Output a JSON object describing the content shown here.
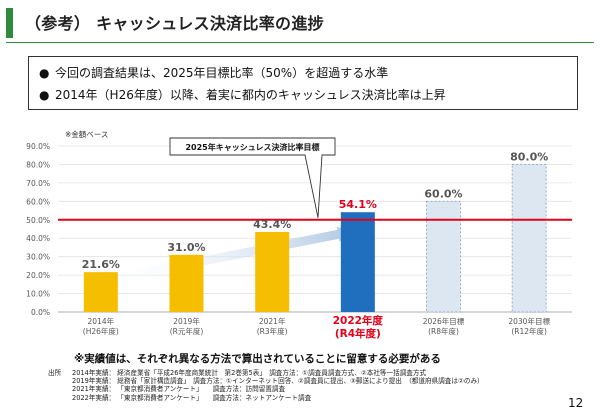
{
  "title": "（参考） キャッシュレス決済比率の進捗",
  "summary": {
    "bullets": [
      "今回の調査結果は、2025年目標比率（50%）を超過する水準",
      "2014年（H26年度）以降、着実に都内のキャッシュレス決済比率は上昇"
    ]
  },
  "colors": {
    "accent_green": "#2e8b3c",
    "bar_actual": "#f5bf00",
    "bar_current": "#1f6fbe",
    "bar_target_fill": "#dde7f1",
    "bar_target_border": "#8aa6c6",
    "target_line": "#e3001b",
    "current_label": "#e3001b"
  },
  "chart_data": {
    "type": "bar",
    "basis_note": "※金額ベース",
    "ylim": [
      0,
      90
    ],
    "yticks": [
      "0.0%",
      "10.0%",
      "20.0%",
      "30.0%",
      "40.0%",
      "50.0%",
      "60.0%",
      "70.0%",
      "80.0%",
      "90.0%"
    ],
    "categories": [
      {
        "year": "2014年",
        "era": "(H26年度)",
        "value": 21.6,
        "label": "21.6%",
        "kind": "actual"
      },
      {
        "year": "2019年",
        "era": "(R元年度)",
        "value": 31.0,
        "label": "31.0%",
        "kind": "actual"
      },
      {
        "year": "2021年",
        "era": "(R3年度)",
        "value": 43.4,
        "label": "43.4%",
        "kind": "actual"
      },
      {
        "year": "2022年度",
        "era": "(R4年度)",
        "value": 54.1,
        "label": "54.1%",
        "kind": "current"
      },
      {
        "year": "2026年目標",
        "era": "(R8年度)",
        "value": 60.0,
        "label": "60.0%",
        "kind": "target"
      },
      {
        "year": "2030年目標",
        "era": "(R12年度)",
        "value": 80.0,
        "label": "80.0%",
        "kind": "target"
      }
    ],
    "target_line": {
      "value": 50,
      "callout": "2025年キャッシュレス決済比率目標"
    }
  },
  "footnote": "※実績値は、それぞれ異なる方法で算出されていることに留意する必要がある",
  "sources": {
    "label": "出所",
    "rows": [
      "2014年実績： 経済産業省「平成26年度商業統計　第2巻第5表」　調査方法：①調査員調査方式、②本社等一括調査方式",
      "2019年実績： 総務省「家計構造調査」　調査方法：①インターネット回答、②調査員に提出、③郵送により提出　（都道府県調査は②のみ）",
      "2021年実績： 「東京都消費者アンケート」　　調査方法：訪問留置調査",
      "2022年実績： 「東京都消費者アンケート」　　調査方法：ネットアンケート調査"
    ]
  },
  "page_number": "12"
}
